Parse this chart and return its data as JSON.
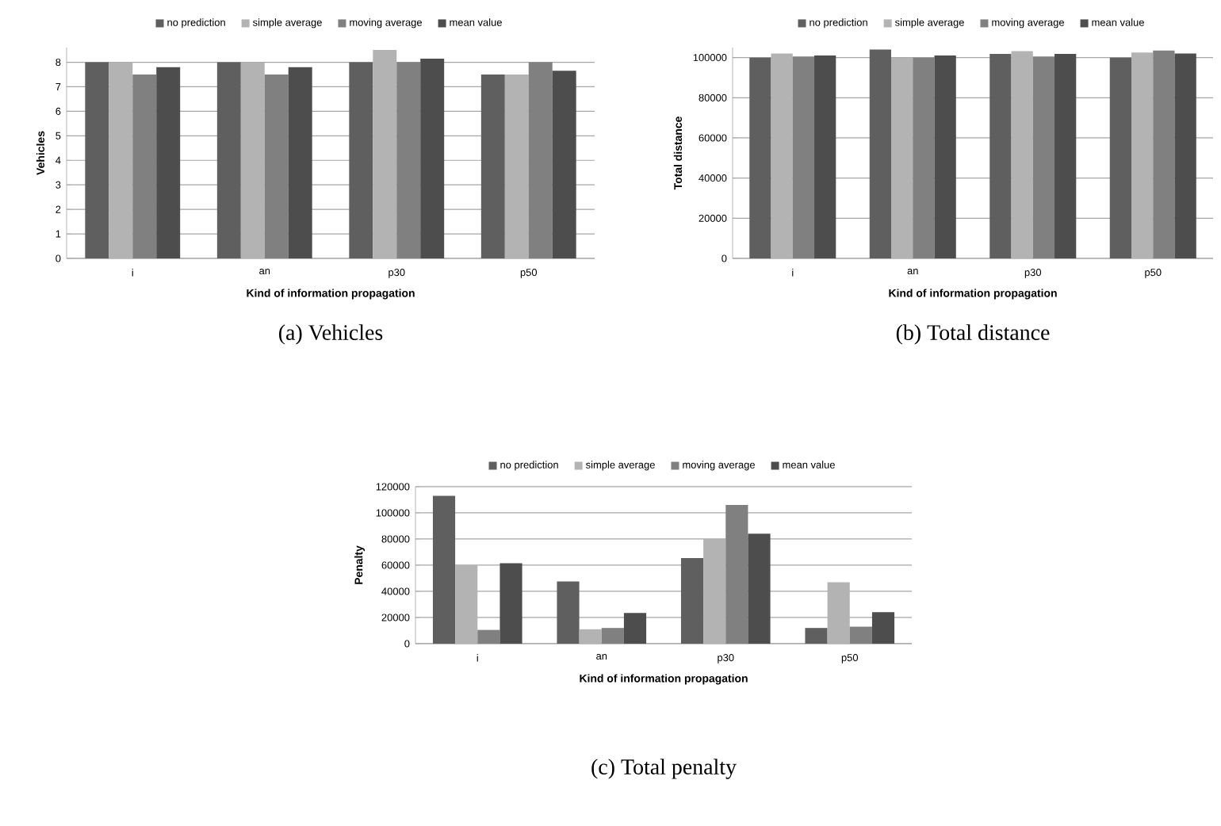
{
  "chart_data": [
    {
      "type": "bar",
      "ylabel": "Vehicles",
      "xlabel": "Kind of information propagation",
      "categories": [
        "i",
        "an",
        "p30",
        "p50"
      ],
      "ylim": [
        0,
        8.6
      ],
      "yticks": [
        0,
        1,
        2,
        3,
        4,
        5,
        6,
        7,
        8
      ],
      "grid": "y",
      "legend": "top",
      "annotations": [
        "(a) Vehicles"
      ],
      "series": [
        {
          "name": "no prediction",
          "color": "#5f5f5f",
          "values": [
            8,
            8,
            8,
            7.5
          ]
        },
        {
          "name": "simple average",
          "color": "#b3b3b3",
          "values": [
            8,
            8,
            8.5,
            7.5
          ]
        },
        {
          "name": "moving average",
          "color": "#808080",
          "values": [
            7.5,
            7.5,
            8,
            8
          ]
        },
        {
          "name": "mean value",
          "color": "#4d4d4d",
          "values": [
            7.8,
            7.8,
            8.15,
            7.65
          ]
        }
      ]
    },
    {
      "type": "bar",
      "ylabel": "Total distance",
      "xlabel": "Kind of information propagation",
      "categories": [
        "i",
        "an",
        "p30",
        "p50"
      ],
      "ylim": [
        0,
        105000
      ],
      "yticks": [
        0,
        20000,
        40000,
        60000,
        80000,
        100000
      ],
      "grid": "y",
      "legend": "top",
      "annotations": [
        "(b) Total distance"
      ],
      "series": [
        {
          "name": "no prediction",
          "color": "#5f5f5f",
          "values": [
            100000,
            104000,
            101800,
            100000
          ]
        },
        {
          "name": "simple average",
          "color": "#b3b3b3",
          "values": [
            102000,
            100000,
            103200,
            102500
          ]
        },
        {
          "name": "moving average",
          "color": "#808080",
          "values": [
            100500,
            100000,
            100500,
            103500
          ]
        },
        {
          "name": "mean value",
          "color": "#4d4d4d",
          "values": [
            101000,
            101000,
            101800,
            102000
          ]
        }
      ]
    },
    {
      "type": "bar",
      "ylabel": "Penalty",
      "xlabel": "Kind of information propagation",
      "categories": [
        "i",
        "an",
        "p30",
        "p50"
      ],
      "ylim": [
        0,
        120000
      ],
      "yticks": [
        0,
        20000,
        40000,
        60000,
        80000,
        100000,
        120000
      ],
      "grid": "y",
      "legend": "top",
      "annotations": [
        "(c) Total penalty"
      ],
      "series": [
        {
          "name": "no prediction",
          "color": "#5f5f5f",
          "values": [
            113000,
            47500,
            65500,
            12000
          ]
        },
        {
          "name": "simple average",
          "color": "#b3b3b3",
          "values": [
            60000,
            11000,
            80000,
            47000
          ]
        },
        {
          "name": "moving average",
          "color": "#808080",
          "values": [
            10500,
            12000,
            106000,
            13000
          ]
        },
        {
          "name": "mean value",
          "color": "#4d4d4d",
          "values": [
            61500,
            23500,
            84000,
            24000
          ]
        }
      ]
    }
  ]
}
